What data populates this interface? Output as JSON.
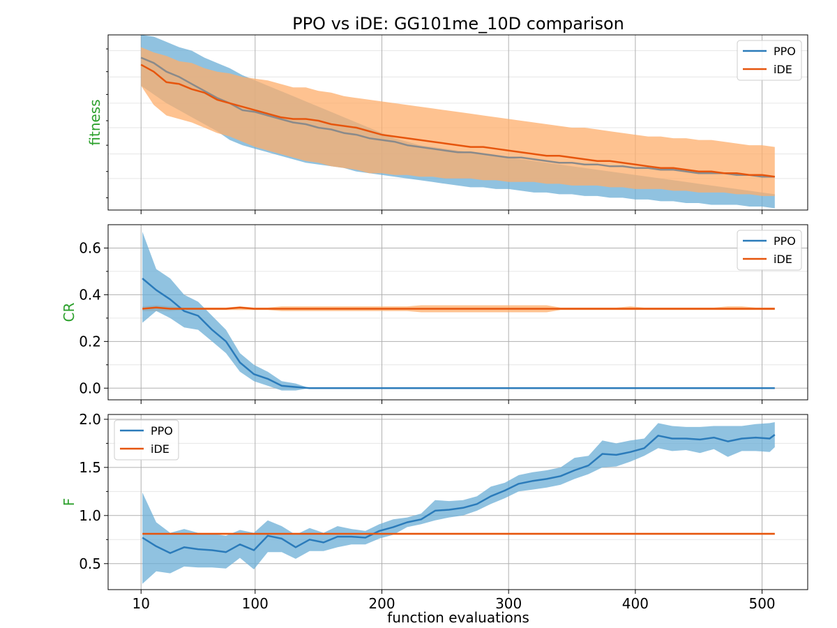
{
  "title": "PPO vs iDE: GG101me_10D comparison",
  "xlabel": "function evaluations",
  "x_ticks": [
    10,
    100,
    200,
    300,
    400,
    500
  ],
  "colors": {
    "ppo": "#2b7bba",
    "ppo_band": "#6baed6",
    "ide": "#e6550d",
    "ide_band": "#fdae6b",
    "label_green": "#2ca02c",
    "grid": "#b0b0b0"
  },
  "legend_labels": [
    "PPO",
    "iDE"
  ],
  "chart_data": [
    {
      "type": "line",
      "ylabel": "fitness",
      "ylim": [
        0,
        1
      ],
      "y_tick_labels_shown": false,
      "legend": "top-right",
      "x": [
        10,
        20,
        30,
        40,
        50,
        60,
        70,
        80,
        90,
        100,
        110,
        120,
        130,
        140,
        150,
        160,
        170,
        180,
        190,
        200,
        210,
        220,
        230,
        240,
        250,
        260,
        270,
        280,
        290,
        300,
        310,
        320,
        330,
        340,
        350,
        360,
        370,
        380,
        390,
        400,
        410,
        420,
        430,
        440,
        450,
        460,
        470,
        480,
        490,
        500,
        510
      ],
      "series": [
        {
          "name": "PPO",
          "mean": [
            0.87,
            0.84,
            0.79,
            0.76,
            0.72,
            0.68,
            0.64,
            0.61,
            0.57,
            0.56,
            0.54,
            0.52,
            0.5,
            0.49,
            0.47,
            0.46,
            0.44,
            0.43,
            0.41,
            0.4,
            0.39,
            0.37,
            0.36,
            0.35,
            0.34,
            0.33,
            0.33,
            0.32,
            0.31,
            0.3,
            0.3,
            0.29,
            0.28,
            0.27,
            0.27,
            0.26,
            0.26,
            0.25,
            0.25,
            0.24,
            0.24,
            0.23,
            0.23,
            0.22,
            0.21,
            0.21,
            0.21,
            0.2,
            0.2,
            0.19,
            0.19
          ],
          "lower": [
            0.71,
            0.66,
            0.61,
            0.57,
            0.53,
            0.49,
            0.45,
            0.4,
            0.37,
            0.35,
            0.33,
            0.31,
            0.29,
            0.27,
            0.26,
            0.25,
            0.24,
            0.22,
            0.21,
            0.2,
            0.19,
            0.18,
            0.17,
            0.16,
            0.15,
            0.14,
            0.13,
            0.13,
            0.12,
            0.12,
            0.11,
            0.1,
            0.1,
            0.09,
            0.09,
            0.08,
            0.08,
            0.07,
            0.07,
            0.06,
            0.06,
            0.05,
            0.05,
            0.04,
            0.04,
            0.03,
            0.03,
            0.03,
            0.02,
            0.02,
            0.01
          ],
          "upper": [
            1.0,
            0.99,
            0.96,
            0.93,
            0.91,
            0.87,
            0.84,
            0.81,
            0.77,
            0.74,
            0.71,
            0.68,
            0.65,
            0.62,
            0.59,
            0.56,
            0.53,
            0.5,
            0.47,
            0.44,
            0.41,
            0.39,
            0.37,
            0.36,
            0.35,
            0.34,
            0.33,
            0.32,
            0.31,
            0.3,
            0.29,
            0.28,
            0.27,
            0.26,
            0.25,
            0.24,
            0.23,
            0.22,
            0.21,
            0.2,
            0.19,
            0.18,
            0.17,
            0.16,
            0.15,
            0.14,
            0.13,
            0.12,
            0.11,
            0.1,
            0.09
          ]
        },
        {
          "name": "iDE",
          "mean": [
            0.83,
            0.79,
            0.73,
            0.72,
            0.69,
            0.67,
            0.63,
            0.61,
            0.59,
            0.57,
            0.55,
            0.53,
            0.52,
            0.52,
            0.51,
            0.49,
            0.48,
            0.47,
            0.45,
            0.43,
            0.42,
            0.41,
            0.4,
            0.39,
            0.38,
            0.37,
            0.36,
            0.36,
            0.35,
            0.34,
            0.33,
            0.32,
            0.31,
            0.31,
            0.3,
            0.29,
            0.28,
            0.28,
            0.27,
            0.26,
            0.25,
            0.24,
            0.24,
            0.23,
            0.22,
            0.22,
            0.21,
            0.21,
            0.2,
            0.2,
            0.19
          ],
          "lower": [
            0.71,
            0.6,
            0.54,
            0.52,
            0.5,
            0.47,
            0.44,
            0.42,
            0.39,
            0.36,
            0.34,
            0.32,
            0.3,
            0.28,
            0.27,
            0.25,
            0.24,
            0.23,
            0.21,
            0.21,
            0.2,
            0.2,
            0.19,
            0.19,
            0.18,
            0.18,
            0.18,
            0.17,
            0.17,
            0.16,
            0.16,
            0.16,
            0.15,
            0.15,
            0.14,
            0.14,
            0.14,
            0.13,
            0.13,
            0.12,
            0.12,
            0.12,
            0.11,
            0.11,
            0.1,
            0.1,
            0.1,
            0.09,
            0.09,
            0.08,
            0.08
          ],
          "upper": [
            0.93,
            0.9,
            0.88,
            0.85,
            0.84,
            0.81,
            0.79,
            0.78,
            0.76,
            0.75,
            0.74,
            0.72,
            0.7,
            0.7,
            0.68,
            0.67,
            0.65,
            0.64,
            0.63,
            0.62,
            0.61,
            0.6,
            0.59,
            0.58,
            0.57,
            0.56,
            0.55,
            0.54,
            0.53,
            0.52,
            0.51,
            0.5,
            0.49,
            0.48,
            0.47,
            0.47,
            0.46,
            0.45,
            0.44,
            0.43,
            0.42,
            0.42,
            0.41,
            0.41,
            0.4,
            0.4,
            0.39,
            0.38,
            0.37,
            0.37,
            0.36
          ]
        }
      ]
    },
    {
      "type": "line",
      "ylabel": "CR",
      "ylim": [
        -0.05,
        0.7
      ],
      "yticks": [
        0.0,
        0.2,
        0.4,
        0.6
      ],
      "ytick_labels": [
        "0.0",
        "0.2",
        "0.4",
        "0.6"
      ],
      "legend": "top-right",
      "x": [
        11,
        22,
        33,
        44,
        55,
        66,
        77,
        88,
        99,
        110,
        121,
        132,
        143,
        154,
        165,
        176,
        187,
        198,
        209,
        220,
        231,
        242,
        253,
        264,
        275,
        286,
        297,
        308,
        319,
        330,
        341,
        352,
        363,
        374,
        385,
        396,
        407,
        418,
        429,
        440,
        451,
        462,
        473,
        484,
        495,
        506,
        510
      ],
      "series": [
        {
          "name": "PPO",
          "mean": [
            0.47,
            0.42,
            0.38,
            0.33,
            0.31,
            0.25,
            0.2,
            0.11,
            0.06,
            0.04,
            0.01,
            0.005,
            0.0,
            0.0,
            0.0,
            0.0,
            0.0,
            0.0,
            0.0,
            0.0,
            0.0,
            0.0,
            0.0,
            0.0,
            0.0,
            0.0,
            0.0,
            0.0,
            0.0,
            0.0,
            0.0,
            0.0,
            0.0,
            0.0,
            0.0,
            0.0,
            0.0,
            0.0,
            0.0,
            0.0,
            0.0,
            0.0,
            0.0,
            0.0,
            0.0,
            0.0,
            0.0
          ],
          "lower": [
            0.28,
            0.33,
            0.3,
            0.26,
            0.25,
            0.2,
            0.15,
            0.07,
            0.03,
            0.01,
            -0.01,
            -0.01,
            0.0,
            0.0,
            0.0,
            0.0,
            0.0,
            0.0,
            0.0,
            0.0,
            0.0,
            0.0,
            0.0,
            0.0,
            0.0,
            0.0,
            0.0,
            0.0,
            0.0,
            0.0,
            0.0,
            0.0,
            0.0,
            0.0,
            0.0,
            0.0,
            0.0,
            0.0,
            0.0,
            0.0,
            0.0,
            0.0,
            0.0,
            0.0,
            0.0,
            0.0,
            0.0
          ],
          "upper": [
            0.67,
            0.51,
            0.47,
            0.4,
            0.37,
            0.31,
            0.25,
            0.15,
            0.1,
            0.07,
            0.03,
            0.02,
            0.0,
            0.0,
            0.0,
            0.0,
            0.0,
            0.0,
            0.0,
            0.0,
            0.0,
            0.0,
            0.0,
            0.0,
            0.0,
            0.0,
            0.0,
            0.0,
            0.0,
            0.0,
            0.0,
            0.0,
            0.0,
            0.0,
            0.0,
            0.0,
            0.0,
            0.0,
            0.0,
            0.0,
            0.0,
            0.0,
            0.0,
            0.0,
            0.0,
            0.0,
            0.0
          ]
        },
        {
          "name": "iDE",
          "mean": [
            0.34,
            0.345,
            0.34,
            0.34,
            0.34,
            0.34,
            0.34,
            0.345,
            0.34,
            0.34,
            0.34,
            0.34,
            0.34,
            0.34,
            0.34,
            0.34,
            0.34,
            0.34,
            0.34,
            0.34,
            0.34,
            0.34,
            0.34,
            0.34,
            0.34,
            0.34,
            0.34,
            0.34,
            0.34,
            0.34,
            0.34,
            0.34,
            0.34,
            0.34,
            0.34,
            0.34,
            0.34,
            0.34,
            0.34,
            0.34,
            0.34,
            0.34,
            0.34,
            0.34,
            0.34,
            0.34,
            0.34
          ],
          "lower": [
            0.33,
            0.33,
            0.33,
            0.335,
            0.335,
            0.335,
            0.335,
            0.335,
            0.335,
            0.335,
            0.33,
            0.33,
            0.33,
            0.33,
            0.33,
            0.33,
            0.33,
            0.33,
            0.33,
            0.33,
            0.325,
            0.325,
            0.325,
            0.325,
            0.325,
            0.325,
            0.325,
            0.325,
            0.325,
            0.325,
            0.335,
            0.335,
            0.335,
            0.335,
            0.335,
            0.335,
            0.335,
            0.335,
            0.335,
            0.335,
            0.335,
            0.335,
            0.335,
            0.335,
            0.335,
            0.335,
            0.335
          ],
          "upper": [
            0.35,
            0.355,
            0.35,
            0.345,
            0.345,
            0.345,
            0.345,
            0.35,
            0.345,
            0.345,
            0.35,
            0.35,
            0.35,
            0.35,
            0.35,
            0.35,
            0.35,
            0.35,
            0.35,
            0.35,
            0.355,
            0.355,
            0.355,
            0.355,
            0.355,
            0.355,
            0.355,
            0.355,
            0.355,
            0.355,
            0.345,
            0.345,
            0.345,
            0.345,
            0.345,
            0.35,
            0.345,
            0.345,
            0.345,
            0.345,
            0.345,
            0.345,
            0.35,
            0.35,
            0.345,
            0.345,
            0.345
          ]
        }
      ]
    },
    {
      "type": "line",
      "ylabel": "F",
      "ylim": [
        0.23,
        2.05
      ],
      "yticks": [
        0.5,
        1.0,
        1.5,
        2.0
      ],
      "ytick_labels": [
        "0.5",
        "1.0",
        "1.5",
        "2.0"
      ],
      "legend": "top-left",
      "x": [
        11,
        22,
        33,
        44,
        55,
        66,
        77,
        88,
        99,
        110,
        121,
        132,
        143,
        154,
        165,
        176,
        187,
        198,
        209,
        220,
        231,
        242,
        253,
        264,
        275,
        286,
        297,
        308,
        319,
        330,
        341,
        352,
        363,
        374,
        385,
        396,
        407,
        418,
        429,
        440,
        451,
        462,
        473,
        484,
        495,
        506,
        510
      ],
      "series": [
        {
          "name": "PPO",
          "mean": [
            0.77,
            0.68,
            0.61,
            0.67,
            0.65,
            0.64,
            0.62,
            0.7,
            0.64,
            0.79,
            0.76,
            0.67,
            0.75,
            0.72,
            0.78,
            0.78,
            0.77,
            0.84,
            0.88,
            0.93,
            0.96,
            1.05,
            1.06,
            1.08,
            1.12,
            1.2,
            1.26,
            1.33,
            1.36,
            1.38,
            1.41,
            1.47,
            1.52,
            1.64,
            1.63,
            1.66,
            1.7,
            1.83,
            1.8,
            1.8,
            1.79,
            1.81,
            1.77,
            1.8,
            1.81,
            1.8,
            1.84
          ],
          "lower": [
            0.29,
            0.42,
            0.4,
            0.47,
            0.46,
            0.46,
            0.45,
            0.56,
            0.44,
            0.62,
            0.62,
            0.55,
            0.63,
            0.63,
            0.67,
            0.7,
            0.7,
            0.76,
            0.8,
            0.88,
            0.91,
            0.95,
            0.98,
            1.0,
            1.05,
            1.12,
            1.18,
            1.25,
            1.27,
            1.29,
            1.32,
            1.38,
            1.43,
            1.5,
            1.51,
            1.56,
            1.62,
            1.7,
            1.67,
            1.68,
            1.65,
            1.69,
            1.61,
            1.67,
            1.67,
            1.66,
            1.71
          ],
          "upper": [
            1.24,
            0.93,
            0.82,
            0.86,
            0.82,
            0.81,
            0.79,
            0.85,
            0.82,
            0.95,
            0.89,
            0.8,
            0.87,
            0.82,
            0.89,
            0.86,
            0.84,
            0.91,
            0.96,
            0.98,
            1.02,
            1.16,
            1.15,
            1.16,
            1.2,
            1.3,
            1.34,
            1.42,
            1.45,
            1.47,
            1.5,
            1.6,
            1.62,
            1.78,
            1.75,
            1.78,
            1.8,
            1.96,
            1.93,
            1.92,
            1.92,
            1.93,
            1.93,
            1.93,
            1.95,
            1.96,
            1.97
          ]
        },
        {
          "name": "iDE",
          "mean": [
            0.81,
            0.81,
            0.81,
            0.81,
            0.81,
            0.81,
            0.81,
            0.81,
            0.81,
            0.81,
            0.81,
            0.81,
            0.81,
            0.81,
            0.81,
            0.81,
            0.81,
            0.81,
            0.81,
            0.81,
            0.81,
            0.81,
            0.81,
            0.81,
            0.81,
            0.81,
            0.81,
            0.81,
            0.81,
            0.81,
            0.81,
            0.81,
            0.81,
            0.81,
            0.81,
            0.81,
            0.81,
            0.81,
            0.81,
            0.81,
            0.81,
            0.81,
            0.81,
            0.81,
            0.81,
            0.81,
            0.81
          ],
          "lower": [
            0.8,
            0.8,
            0.8,
            0.8,
            0.8,
            0.8,
            0.8,
            0.8,
            0.8,
            0.8,
            0.8,
            0.8,
            0.8,
            0.8,
            0.8,
            0.8,
            0.8,
            0.8,
            0.8,
            0.8,
            0.8,
            0.8,
            0.8,
            0.8,
            0.8,
            0.8,
            0.8,
            0.8,
            0.8,
            0.8,
            0.8,
            0.8,
            0.8,
            0.8,
            0.8,
            0.8,
            0.8,
            0.8,
            0.8,
            0.8,
            0.8,
            0.8,
            0.8,
            0.8,
            0.8,
            0.8,
            0.8
          ],
          "upper": [
            0.82,
            0.82,
            0.82,
            0.82,
            0.82,
            0.82,
            0.82,
            0.82,
            0.82,
            0.82,
            0.82,
            0.82,
            0.82,
            0.82,
            0.82,
            0.82,
            0.82,
            0.82,
            0.82,
            0.82,
            0.82,
            0.82,
            0.82,
            0.82,
            0.82,
            0.82,
            0.82,
            0.82,
            0.82,
            0.82,
            0.82,
            0.82,
            0.82,
            0.82,
            0.82,
            0.82,
            0.82,
            0.82,
            0.82,
            0.82,
            0.82,
            0.82,
            0.82,
            0.82,
            0.82,
            0.82,
            0.82
          ]
        }
      ]
    }
  ]
}
